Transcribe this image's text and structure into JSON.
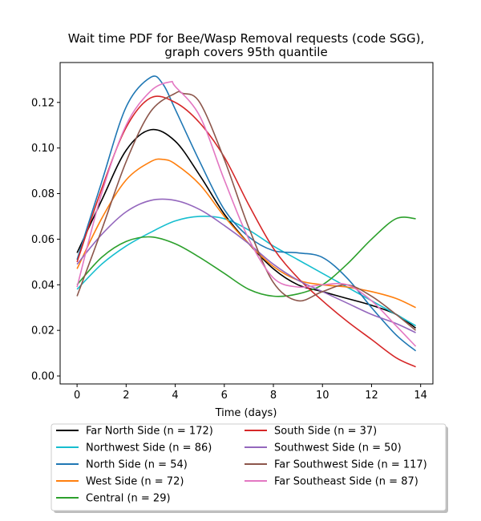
{
  "chart_data": {
    "type": "line",
    "title": "Wait time PDF for Bee/Wasp Removal  requests (code SGG),\ngraph covers 95th quantile",
    "xlabel": "Time (days)",
    "ylabel": "",
    "xlim": [
      -0.69,
      14.5
    ],
    "ylim": [
      -0.0035,
      0.1375
    ],
    "xticks": [
      0,
      2,
      4,
      6,
      8,
      10,
      12,
      14
    ],
    "xtick_labels": [
      "0",
      "2",
      "4",
      "6",
      "8",
      "10",
      "12",
      "14"
    ],
    "yticks": [
      0.0,
      0.02,
      0.04,
      0.06,
      0.08,
      0.1,
      0.12
    ],
    "ytick_labels": [
      "0.00",
      "0.02",
      "0.04",
      "0.06",
      "0.08",
      "0.10",
      "0.12"
    ],
    "grid": false,
    "legend_placement": "below the axes, two columns",
    "series": [
      {
        "name": "Far North Side (n = 172)",
        "color": "#000000",
        "x": [
          0,
          1,
          2,
          3,
          4,
          5,
          6,
          7,
          8,
          9,
          10,
          11,
          12,
          13,
          13.8
        ],
        "y": [
          0.054,
          0.077,
          0.099,
          0.108,
          0.103,
          0.088,
          0.071,
          0.058,
          0.047,
          0.04,
          0.037,
          0.034,
          0.031,
          0.027,
          0.021
        ]
      },
      {
        "name": "Northwest Side (n = 86)",
        "color": "#17becf",
        "x": [
          0,
          1,
          2,
          3,
          4,
          5,
          6,
          7,
          8,
          9,
          10,
          11,
          12,
          13,
          13.8
        ],
        "y": [
          0.038,
          0.049,
          0.057,
          0.063,
          0.068,
          0.07,
          0.069,
          0.064,
          0.057,
          0.051,
          0.045,
          0.039,
          0.033,
          0.027,
          0.022
        ]
      },
      {
        "name": "North Side (n = 54)",
        "color": "#1f77b4",
        "x": [
          0,
          1,
          2,
          3,
          3.5,
          4,
          5,
          6,
          7,
          8,
          9,
          10,
          11,
          12,
          13,
          13.8
        ],
        "y": [
          0.051,
          0.085,
          0.118,
          0.131,
          0.128,
          0.117,
          0.094,
          0.073,
          0.061,
          0.055,
          0.054,
          0.052,
          0.043,
          0.03,
          0.018,
          0.011
        ]
      },
      {
        "name": "West Side (n = 72)",
        "color": "#ff7f0e",
        "x": [
          0,
          1,
          2,
          3,
          3.5,
          4,
          5,
          6,
          7,
          8,
          9,
          10,
          11,
          12,
          13,
          13.8
        ],
        "y": [
          0.047,
          0.069,
          0.086,
          0.094,
          0.095,
          0.093,
          0.084,
          0.07,
          0.058,
          0.048,
          0.042,
          0.04,
          0.039,
          0.037,
          0.034,
          0.03
        ]
      },
      {
        "name": "Central (n = 29)",
        "color": "#2ca02c",
        "x": [
          0,
          1,
          2,
          3,
          4,
          5,
          6,
          7,
          8,
          9,
          10,
          11,
          12,
          13,
          13.8
        ],
        "y": [
          0.04,
          0.052,
          0.059,
          0.061,
          0.058,
          0.052,
          0.045,
          0.038,
          0.035,
          0.036,
          0.04,
          0.049,
          0.06,
          0.069,
          0.069
        ]
      },
      {
        "name": "South Side (n = 37)",
        "color": "#d62728",
        "x": [
          0,
          1,
          2,
          3,
          4,
          5,
          6,
          7,
          8,
          9,
          10,
          11,
          12,
          13,
          13.8
        ],
        "y": [
          0.05,
          0.082,
          0.109,
          0.122,
          0.12,
          0.111,
          0.096,
          0.075,
          0.056,
          0.043,
          0.033,
          0.024,
          0.016,
          0.008,
          0.004
        ]
      },
      {
        "name": "Southwest Side (n = 50)",
        "color": "#9467bd",
        "x": [
          0,
          1,
          2,
          3,
          4,
          5,
          6,
          7,
          8,
          9,
          10,
          11,
          12,
          13,
          13.8
        ],
        "y": [
          0.049,
          0.062,
          0.072,
          0.077,
          0.077,
          0.073,
          0.066,
          0.058,
          0.049,
          0.042,
          0.037,
          0.032,
          0.027,
          0.023,
          0.019
        ]
      },
      {
        "name": "Far Southwest Side (n = 117)",
        "color": "#8c564b",
        "x": [
          0,
          1,
          2,
          3,
          4,
          4.3,
          5,
          6,
          7,
          8,
          9,
          10,
          11,
          12,
          13,
          13.8
        ],
        "y": [
          0.035,
          0.064,
          0.094,
          0.116,
          0.124,
          0.124,
          0.12,
          0.095,
          0.065,
          0.041,
          0.033,
          0.037,
          0.04,
          0.035,
          0.027,
          0.02
        ]
      },
      {
        "name": "Far Southeast Side (n = 87)",
        "color": "#e377c2",
        "x": [
          0,
          1,
          2,
          3,
          3.8,
          4,
          5,
          6,
          7,
          8,
          9,
          10,
          11,
          12,
          13,
          13.8
        ],
        "y": [
          0.039,
          0.08,
          0.11,
          0.125,
          0.129,
          0.127,
          0.114,
          0.086,
          0.06,
          0.043,
          0.039,
          0.04,
          0.04,
          0.033,
          0.022,
          0.013
        ]
      }
    ]
  }
}
